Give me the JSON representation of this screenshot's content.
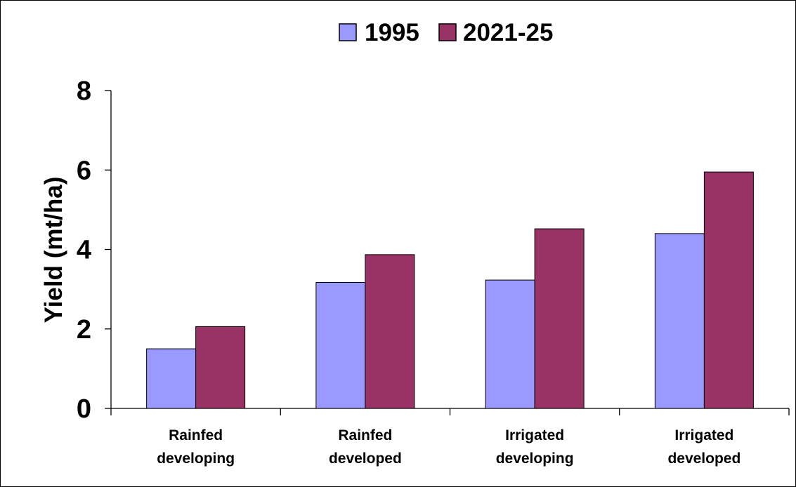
{
  "chart_data": {
    "type": "bar",
    "categories": [
      [
        "Rainfed",
        "developing"
      ],
      [
        "Rainfed",
        "developed"
      ],
      [
        "Irrigated",
        "developing"
      ],
      [
        "Irrigated",
        "developed"
      ]
    ],
    "series": [
      {
        "name": "1995",
        "values": [
          1.5,
          3.17,
          3.23,
          4.4
        ],
        "color": "#9999ff"
      },
      {
        "name": "2021-25",
        "values": [
          2.06,
          3.87,
          4.52,
          5.95
        ],
        "color": "#993366"
      }
    ],
    "title": "",
    "xlabel": "",
    "ylabel": "Yield (mt/ha)",
    "ylim": [
      0,
      8
    ],
    "yticks": [
      0,
      2,
      4,
      6,
      8
    ],
    "grid": false,
    "legend_position": "top-center"
  }
}
